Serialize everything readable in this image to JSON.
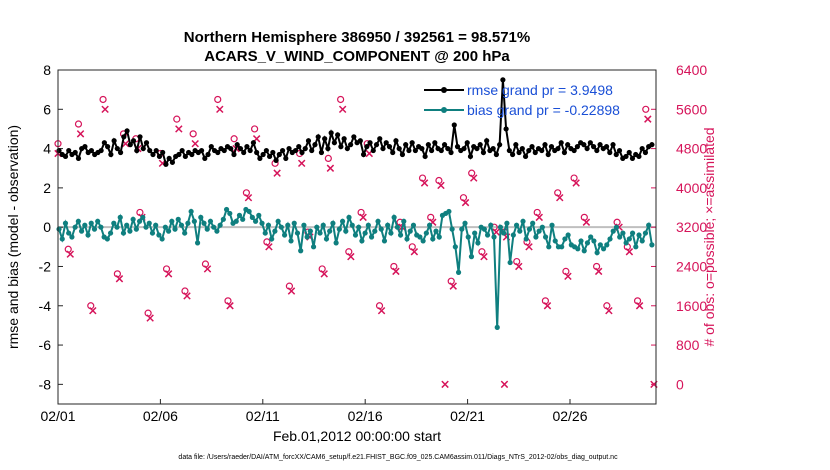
{
  "chart_data": {
    "type": "line",
    "title_line1": "Northern Hemisphere 386950 / 392561 = 98.571%",
    "title_line2": "ACARS_V_WIND_COMPONENT @ 200 hPa",
    "xlabel": "Feb.01,2012 00:00:00 start",
    "ylabel_left": "rmse and bias (model - observation)",
    "ylabel_right": "# of obs: o=possible; ×=assimilated",
    "footer": "data file: /Users/raeder/DAI/ATM_forcXX/CAM6_setup/f.e21.FHIST_BGC.f09_025.CAM6assim.011/Diags_NTrS_2012-02/obs_diag_output.nc",
    "x_ticks": [
      "02/01",
      "02/06",
      "02/11",
      "02/16",
      "02/21",
      "02/26"
    ],
    "x_tick_days": [
      1,
      6,
      11,
      16,
      21,
      26
    ],
    "xlim": [
      1,
      30.2
    ],
    "ylim_left": [
      -9,
      8
    ],
    "y_ticks_left": [
      "-8",
      "-6",
      "-4",
      "-2",
      "0",
      "2",
      "4",
      "6",
      "8"
    ],
    "ylim_right": [
      -400,
      6400
    ],
    "y_ticks_right": [
      "0",
      "800",
      "1600",
      "2400",
      "3200",
      "4000",
      "4800",
      "5600",
      "6400"
    ],
    "colors": {
      "rmse": "#000000",
      "bias": "#0f7f7f",
      "obs": "#d6145a",
      "zero_line": "#bfbfbf",
      "legend_text": "#1a4fd6"
    },
    "series": [
      {
        "name": "rmse grand pr = 3.9498",
        "values": [
          3.9,
          3.7,
          3.6,
          3.9,
          3.7,
          3.8,
          3.5,
          4.0,
          4.1,
          3.8,
          3.9,
          3.7,
          3.8,
          3.9,
          4.3,
          4.1,
          3.7,
          4.4,
          4.0,
          3.8,
          4.6,
          4.9,
          4.2,
          4.4,
          3.9,
          4.6,
          4.0,
          4.3,
          3.9,
          3.7,
          3.9,
          3.6,
          3.8,
          3.2,
          3.5,
          3.3,
          3.6,
          3.7,
          3.9,
          3.6,
          3.8,
          3.7,
          3.9,
          3.8,
          3.9,
          3.5,
          3.7,
          4.1,
          3.9,
          3.8,
          4.0,
          3.9,
          4.1,
          4.0,
          3.7,
          4.2,
          4.0,
          3.8,
          4.1,
          3.9,
          4.3,
          3.8,
          3.5,
          3.7,
          3.9,
          3.6,
          3.8,
          3.4,
          3.7,
          3.9,
          3.5,
          4.0,
          3.8,
          3.9,
          4.1,
          3.8,
          4.0,
          4.4,
          3.9,
          4.2,
          4.6,
          3.8,
          4.5,
          4.0,
          4.8,
          4.3,
          4.7,
          4.1,
          4.5,
          4.0,
          4.2,
          4.6,
          4.3,
          4.4,
          3.7,
          4.1,
          4.3,
          3.9,
          4.2,
          4.5,
          4.0,
          4.3,
          4.1,
          3.8,
          4.4,
          4.0,
          3.7,
          4.2,
          3.9,
          4.3,
          3.9,
          4.1,
          4.0,
          3.6,
          4.2,
          3.9,
          4.3,
          4.0,
          3.9,
          4.2,
          4.0,
          3.8,
          5.2,
          4.1,
          3.9,
          4.0,
          4.3,
          3.6,
          4.1,
          4.0,
          4.2,
          3.8,
          4.4,
          3.9,
          4.0,
          3.7,
          4.2,
          7.5,
          5.0,
          3.9,
          3.7,
          4.2,
          3.8,
          4.0,
          3.6,
          3.9,
          4.1,
          3.8,
          4.0,
          3.9,
          4.2,
          3.7,
          4.1,
          3.9,
          4.0,
          4.3,
          3.8,
          4.2,
          4.0,
          3.9,
          4.1,
          4.3,
          4.2,
          4.0,
          4.3,
          4.1,
          3.9,
          4.2,
          4.0,
          4.1,
          3.8,
          4.2,
          3.7,
          3.9,
          3.5,
          3.6,
          3.8,
          3.5,
          3.7,
          3.6,
          4.0,
          3.8,
          4.1,
          4.2
        ]
      },
      {
        "name": "bias grand pr = -0.22898",
        "values": [
          -0.1,
          -0.6,
          0.2,
          -0.3,
          -0.5,
          0.0,
          0.3,
          -0.2,
          0.1,
          -0.4,
          0.2,
          -0.1,
          0.3,
          0.0,
          -0.5,
          -0.6,
          -0.3,
          0.2,
          0.0,
          0.5,
          -0.3,
          0.1,
          -0.2,
          0.4,
          -0.1,
          0.3,
          0.5,
          0.0,
          0.2,
          -0.3,
          0.1,
          -0.4,
          -0.6,
          0.0,
          -0.2,
          0.3,
          -0.1,
          0.4,
          0.1,
          -0.3,
          0.2,
          0.8,
          0.3,
          -0.8,
          0.5,
          0.2,
          -0.1,
          0.3,
          0.0,
          -0.2,
          0.1,
          0.4,
          0.9,
          0.7,
          0.2,
          0.3,
          0.6,
          0.4,
          0.9,
          0.8,
          0.5,
          0.3,
          0.6,
          0.2,
          -0.3,
          0.1,
          -0.6,
          -0.2,
          0.3,
          0.0,
          -0.4,
          0.1,
          -0.7,
          0.2,
          -0.3,
          -1.2,
          0.1,
          -0.5,
          -0.2,
          -1.0,
          0.0,
          -0.3,
          0.1,
          -0.6,
          -0.2,
          0.2,
          -0.8,
          -0.1,
          0.3,
          -0.2,
          0.5,
          0.1,
          -0.4,
          0.0,
          -0.7,
          -0.3,
          0.1,
          -0.5,
          -0.2,
          0.3,
          -0.1,
          -0.7,
          0.1,
          -0.3,
          0.5,
          0.0,
          -0.4,
          0.3,
          -0.6,
          -0.2,
          0.1,
          -0.4,
          -0.5,
          -0.7,
          -0.3,
          0.1,
          -0.6,
          -0.2,
          -0.5,
          0.6,
          0.7,
          0.8,
          -0.1,
          -1.0,
          -2.3,
          -0.1,
          0.2,
          -0.5,
          -1.5,
          -0.3,
          -0.8,
          0.0,
          -0.1,
          -0.4,
          0.1,
          -0.5,
          -5.1,
          0.0,
          -0.3,
          0.2,
          -1.8,
          -0.4,
          0.1,
          -0.2,
          0.3,
          -0.6,
          -0.1,
          0.2,
          -0.5,
          -0.2,
          0.0,
          -0.5,
          -1.0,
          0.1,
          -0.7,
          -1.0,
          -1.0,
          -0.6,
          -0.4,
          -0.9,
          -1.0,
          -1.1,
          -0.7,
          -1.2,
          -0.8,
          -0.5,
          -0.7,
          -1.3,
          -0.9,
          -1.1,
          -0.9,
          -0.6,
          -0.2,
          0.0,
          -0.5,
          -0.3,
          -0.8,
          -0.6,
          -0.3,
          -1.0,
          -0.4,
          -0.7,
          -0.3,
          0.1,
          -0.9
        ]
      }
    ],
    "obs_possible": [
      [
        1.0,
        4900
      ],
      [
        1.5,
        2750
      ],
      [
        2.0,
        5300
      ],
      [
        2.6,
        1600
      ],
      [
        3.2,
        5800
      ],
      [
        3.9,
        2250
      ],
      [
        4.2,
        5100
      ],
      [
        4.8,
        5000
      ],
      [
        5.0,
        3500
      ],
      [
        5.4,
        1450
      ],
      [
        6.0,
        4700
      ],
      [
        6.3,
        2350
      ],
      [
        6.8,
        5400
      ],
      [
        7.2,
        1900
      ],
      [
        7.6,
        5100
      ],
      [
        8.2,
        2450
      ],
      [
        8.8,
        5800
      ],
      [
        9.3,
        1700
      ],
      [
        9.6,
        5000
      ],
      [
        10.2,
        3900
      ],
      [
        10.6,
        5200
      ],
      [
        11.2,
        2900
      ],
      [
        11.6,
        4500
      ],
      [
        12.3,
        2000
      ],
      [
        12.8,
        4700
      ],
      [
        13.2,
        3100
      ],
      [
        13.9,
        2350
      ],
      [
        14.2,
        4600
      ],
      [
        14.8,
        5800
      ],
      [
        15.2,
        2700
      ],
      [
        15.8,
        3500
      ],
      [
        16.1,
        4900
      ],
      [
        16.7,
        1600
      ],
      [
        17.4,
        2400
      ],
      [
        17.7,
        3300
      ],
      [
        18.3,
        2800
      ],
      [
        18.8,
        4200
      ],
      [
        19.2,
        3400
      ],
      [
        19.6,
        4150
      ],
      [
        20.2,
        2100
      ],
      [
        20.8,
        3800
      ],
      [
        21.2,
        4300
      ],
      [
        21.7,
        2700
      ],
      [
        22.3,
        3200
      ],
      [
        22.8,
        3100
      ],
      [
        23.4,
        2500
      ],
      [
        23.9,
        2900
      ],
      [
        24.4,
        3500
      ],
      [
        24.8,
        1700
      ],
      [
        25.4,
        3900
      ],
      [
        25.8,
        2300
      ],
      [
        26.2,
        4200
      ],
      [
        26.7,
        3400
      ],
      [
        27.3,
        2400
      ],
      [
        27.8,
        1600
      ],
      [
        28.3,
        3300
      ],
      [
        28.8,
        2800
      ],
      [
        29.3,
        1700
      ],
      [
        29.7,
        5600
      ]
    ],
    "obs_assimilated": [
      [
        1.0,
        4700
      ],
      [
        1.6,
        2650
      ],
      [
        2.1,
        5100
      ],
      [
        2.7,
        1500
      ],
      [
        3.3,
        5600
      ],
      [
        4.0,
        2150
      ],
      [
        4.3,
        4900
      ],
      [
        4.9,
        4800
      ],
      [
        5.1,
        3400
      ],
      [
        5.5,
        1350
      ],
      [
        6.1,
        4500
      ],
      [
        6.4,
        2250
      ],
      [
        6.9,
        5200
      ],
      [
        7.3,
        1800
      ],
      [
        7.7,
        4900
      ],
      [
        8.3,
        2350
      ],
      [
        8.9,
        5600
      ],
      [
        9.4,
        1600
      ],
      [
        9.7,
        4800
      ],
      [
        10.3,
        3800
      ],
      [
        10.7,
        5000
      ],
      [
        11.3,
        2800
      ],
      [
        11.7,
        4300
      ],
      [
        12.4,
        1900
      ],
      [
        12.9,
        4500
      ],
      [
        13.3,
        3000
      ],
      [
        14.0,
        2250
      ],
      [
        14.3,
        4400
      ],
      [
        14.9,
        5600
      ],
      [
        15.3,
        2600
      ],
      [
        15.9,
        3400
      ],
      [
        16.2,
        4700
      ],
      [
        16.8,
        1500
      ],
      [
        17.5,
        2300
      ],
      [
        17.8,
        3200
      ],
      [
        18.4,
        2700
      ],
      [
        18.9,
        4100
      ],
      [
        19.3,
        3300
      ],
      [
        19.7,
        4050
      ],
      [
        19.9,
        0
      ],
      [
        20.3,
        2000
      ],
      [
        20.9,
        3700
      ],
      [
        21.3,
        4200
      ],
      [
        21.8,
        2600
      ],
      [
        22.4,
        3100
      ],
      [
        22.9,
        3000
      ],
      [
        22.8,
        0
      ],
      [
        23.5,
        2400
      ],
      [
        24.0,
        2800
      ],
      [
        24.5,
        3400
      ],
      [
        24.9,
        1600
      ],
      [
        25.5,
        3800
      ],
      [
        25.9,
        2200
      ],
      [
        26.3,
        4100
      ],
      [
        26.8,
        3300
      ],
      [
        27.4,
        2300
      ],
      [
        27.9,
        1500
      ],
      [
        28.4,
        3200
      ],
      [
        28.9,
        2700
      ],
      [
        29.4,
        1600
      ],
      [
        29.8,
        5400
      ],
      [
        30.1,
        0
      ]
    ]
  }
}
